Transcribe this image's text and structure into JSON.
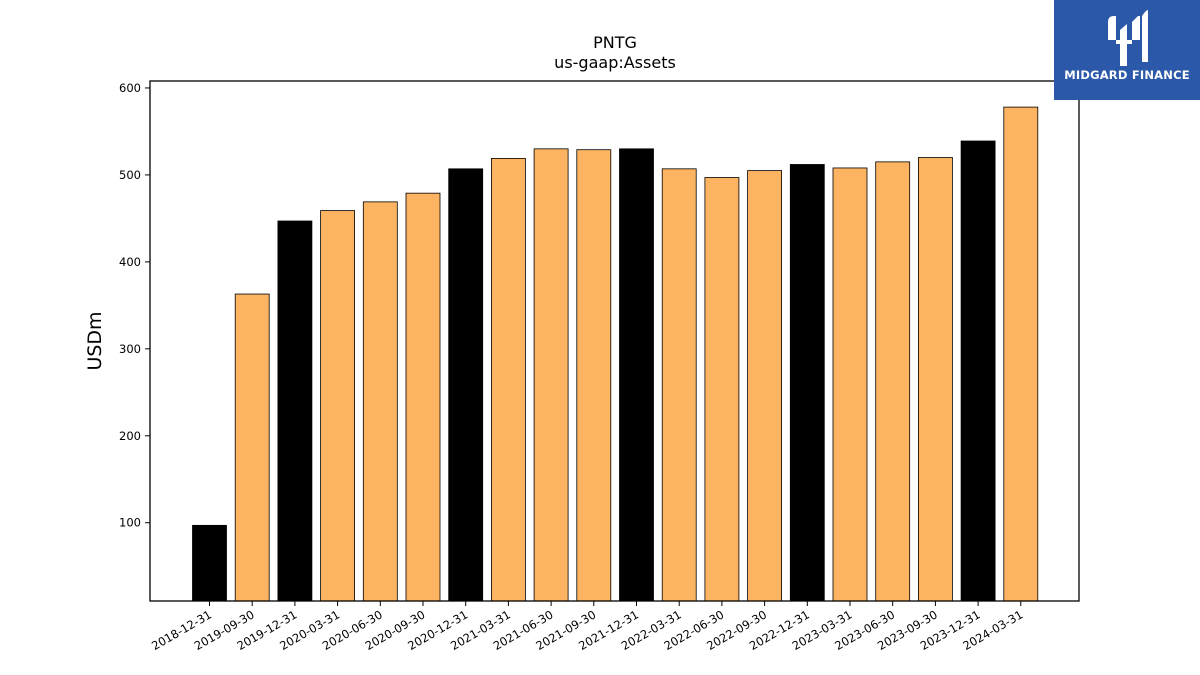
{
  "chart_data": {
    "type": "bar",
    "title": "PNTG",
    "subtitle": "us-gaap:Assets",
    "ylabel": "USDm",
    "xlabel": "",
    "ylim": [
      10,
      608
    ],
    "yticks": [
      100,
      200,
      300,
      400,
      500,
      600
    ],
    "categories": [
      "2018-12-31",
      "2019-09-30",
      "2019-12-31",
      "2020-03-31",
      "2020-06-30",
      "2020-09-30",
      "2020-12-31",
      "2021-03-31",
      "2021-06-30",
      "2021-09-30",
      "2021-12-31",
      "2022-03-31",
      "2022-06-30",
      "2022-09-30",
      "2022-12-31",
      "2023-03-31",
      "2023-06-30",
      "2023-09-30",
      "2023-12-31",
      "2024-03-31"
    ],
    "values": [
      97,
      363,
      447,
      459,
      469,
      479,
      507,
      519,
      530,
      529,
      530,
      507,
      497,
      505,
      512,
      508,
      515,
      520,
      539,
      578
    ],
    "colors": [
      "#000000",
      "#fdb462",
      "#000000",
      "#fdb462",
      "#fdb462",
      "#fdb462",
      "#000000",
      "#fdb462",
      "#fdb462",
      "#fdb462",
      "#000000",
      "#fdb462",
      "#fdb462",
      "#fdb462",
      "#000000",
      "#fdb462",
      "#fdb462",
      "#fdb462",
      "#000000",
      "#fdb462"
    ],
    "grid": false,
    "legend": "none"
  },
  "logo": {
    "text": "MIDGARD FINANCE",
    "background": "#2b58a8"
  }
}
